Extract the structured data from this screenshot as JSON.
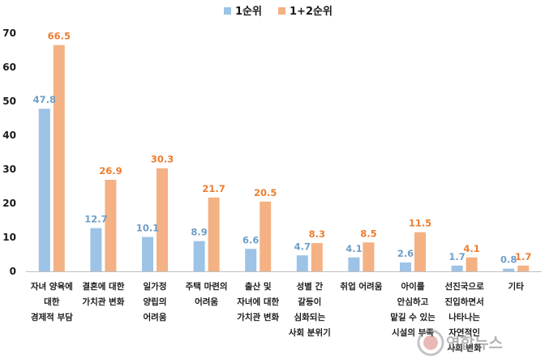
{
  "chart_data": {
    "type": "bar",
    "categories": [
      [
        "자녀 양육에",
        "대한",
        "경제적 부담"
      ],
      [
        "결혼에 대한",
        "가치관 변화"
      ],
      [
        "일가정",
        "양립의",
        "어려움"
      ],
      [
        "주택 마련의",
        "어려움"
      ],
      [
        "출산 및",
        "자녀에 대한",
        "가치관 변화"
      ],
      [
        "성별 간",
        "갈등이",
        "심화되는",
        "사회 분위기"
      ],
      [
        "취업 어려움"
      ],
      [
        "아이를",
        "안심하고",
        "맡길 수 있는",
        "시설의 부족"
      ],
      [
        "선진국으로",
        "진입하면서",
        "나타나는",
        "자연적인",
        "사회 변화"
      ],
      [
        "기타"
      ]
    ],
    "series": [
      {
        "name": "1순위",
        "color": "#9dc3e6",
        "label_color": "#6f9ec8",
        "values": [
          47.8,
          12.7,
          10.1,
          8.9,
          6.6,
          4.7,
          4.1,
          2.6,
          1.7,
          0.8
        ]
      },
      {
        "name": "1+2순위",
        "color": "#f4b183",
        "label_color": "#ed7d31",
        "values": [
          66.5,
          26.9,
          30.3,
          21.7,
          20.5,
          8.3,
          8.5,
          11.5,
          4.1,
          1.7
        ]
      }
    ],
    "yticks": [
      0,
      10,
      20,
      30,
      40,
      50,
      60,
      70
    ],
    "ylim": [
      0,
      70
    ],
    "legend_position": "top-center",
    "grid": false
  },
  "watermark": {
    "text": "연합뉴스"
  }
}
